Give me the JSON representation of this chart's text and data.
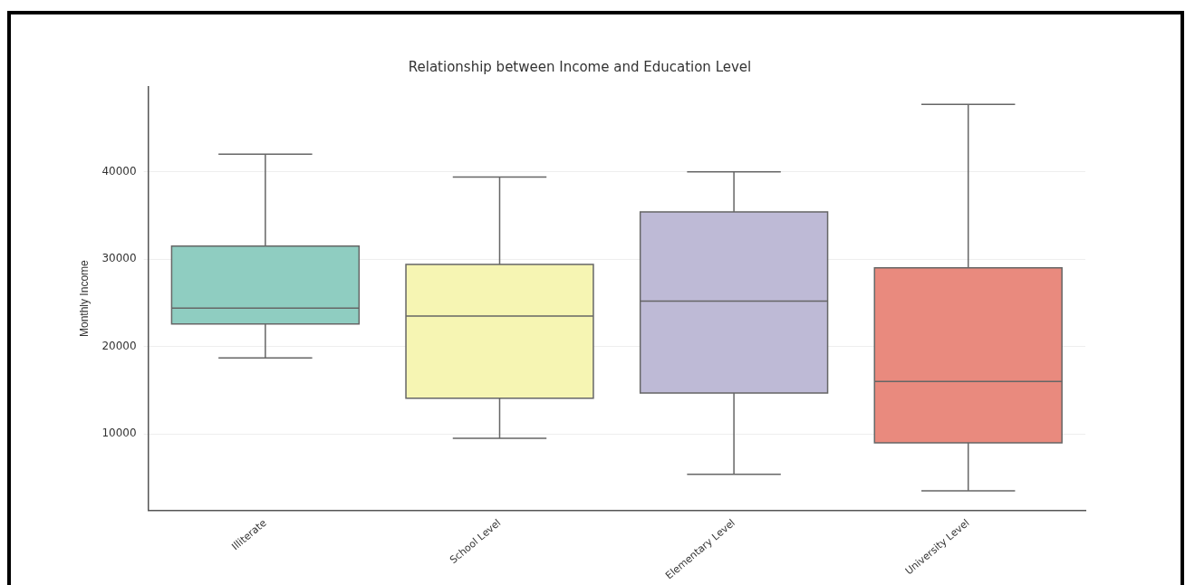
{
  "chart_data": {
    "type": "box",
    "title": "Relationship between Income and Education Level",
    "ylabel": "Monthly Income",
    "categories": [
      "Illiterate",
      "School Level",
      "Elementary Level",
      "University Level"
    ],
    "boxes": [
      {
        "low": 18700,
        "q1": 22600,
        "median": 24400,
        "q3": 31500,
        "high": 42000
      },
      {
        "low": 9500,
        "q1": 14100,
        "median": 23500,
        "q3": 29400,
        "high": 39400
      },
      {
        "low": 5400,
        "q1": 14700,
        "median": 25200,
        "q3": 35400,
        "high": 40000
      },
      {
        "low": 3500,
        "q1": 9000,
        "median": 16000,
        "q3": 29000,
        "high": 47700
      }
    ],
    "colors": [
      "#8fcdc1",
      "#f6f5b3",
      "#bebad6",
      "#e98a7e"
    ],
    "ylim": [
      1300,
      49700
    ],
    "yticks": [
      10000,
      20000,
      30000,
      40000
    ],
    "grid": "y"
  }
}
